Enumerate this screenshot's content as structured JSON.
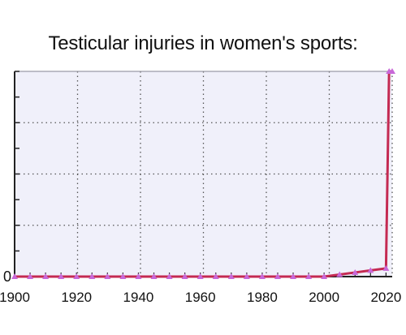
{
  "title": "Testicular injuries in women's sports:",
  "colors": {
    "plot_background": "#f0f0fa",
    "line": "#c42a52",
    "marker": "#c868d8",
    "grid": "#555555",
    "axis": "#222222"
  },
  "chart_data": {
    "type": "line",
    "title": "Testicular injuries in women's sports:",
    "xlabel": "",
    "ylabel": "",
    "x_ticks": [
      "1900",
      "1920",
      "1940",
      "1960",
      "1980",
      "2000",
      "2020"
    ],
    "y_ticks": [
      "0"
    ],
    "xlim": [
      1900,
      2022
    ],
    "ylim": [
      0,
      100
    ],
    "grid": true,
    "legend": "none",
    "series": [
      {
        "x": [
          1900,
          1905,
          1910,
          1915,
          1920,
          1925,
          1930,
          1935,
          1940,
          1945,
          1950,
          1955,
          1960,
          1965,
          1970,
          1975,
          1980,
          1985,
          1990,
          1995,
          2000,
          2005,
          2010,
          2015,
          2020,
          2021,
          2022
        ],
        "y": [
          0,
          0,
          0,
          0,
          0,
          0,
          0,
          0,
          0,
          0,
          0,
          0,
          0,
          0,
          0,
          0,
          0,
          0,
          0,
          0,
          0,
          1,
          2,
          3,
          4,
          100,
          100
        ]
      }
    ]
  }
}
